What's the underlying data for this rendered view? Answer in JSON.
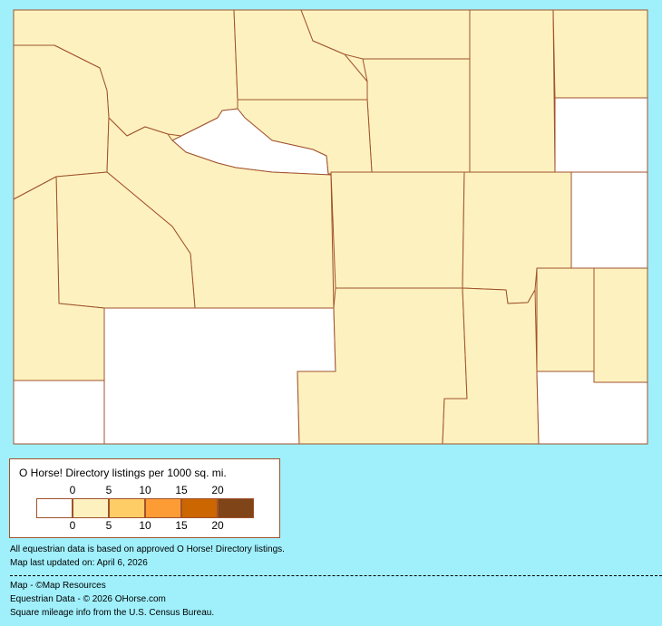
{
  "colors": {
    "background": "#a0f0fc",
    "border": "#a0522d",
    "no_data": "#ffffff",
    "low": "#fdf2bf"
  },
  "legend": {
    "title": "O Horse! Directory listings per 1000 sq. mi.",
    "top_ticks": [
      "0",
      "5",
      "10",
      "15",
      "20"
    ],
    "bottom_ticks": [
      "0",
      "5",
      "10",
      "15",
      "20"
    ],
    "swatches": [
      "#ffffff",
      "#fdf2bf",
      "#fecd66",
      "#fd9b35",
      "#cc6600",
      "#7f4418"
    ]
  },
  "notes": {
    "basis": "All equestrian data is based on approved O Horse! Directory listings.",
    "updated": "Map last updated on: April 6, 2026"
  },
  "credits": {
    "map": "Map - ©Map Resources",
    "data": "Equestrian Data - © 2026 OHorse.com",
    "census": "Square mileage info from the U.S. Census Bureau."
  }
}
